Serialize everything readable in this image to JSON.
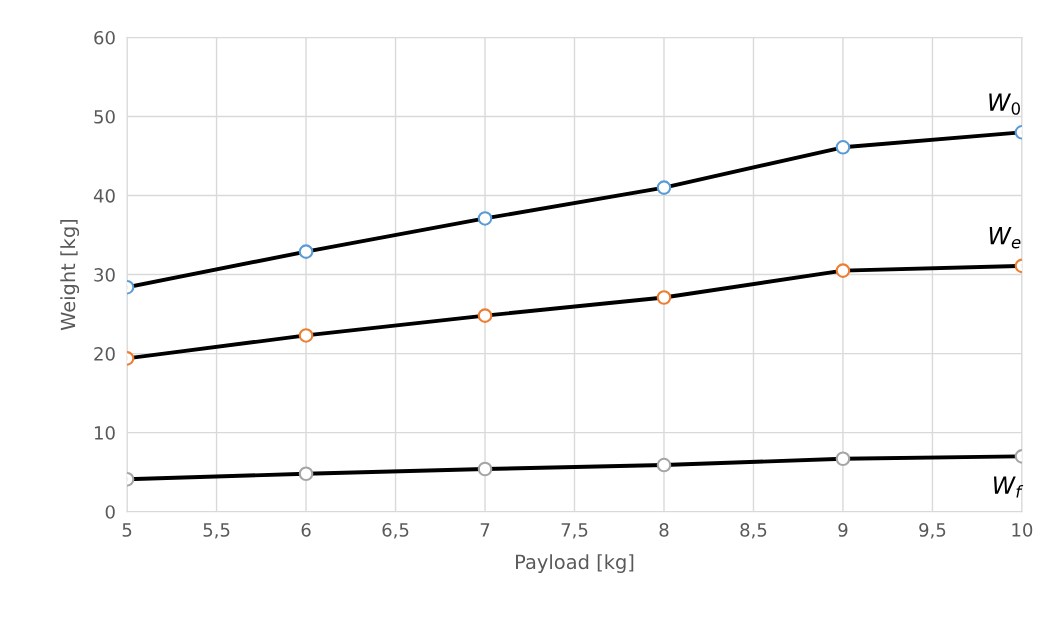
{
  "chart_data": {
    "type": "line",
    "xlabel": "Payload [kg]",
    "ylabel": "Weight [kg]",
    "x": [
      5,
      6,
      7,
      8,
      9,
      10
    ],
    "series": [
      {
        "name": "W$_{0}$",
        "color": "#5b9bd5",
        "values": [
          28.4,
          32.9,
          37.1,
          41.0,
          46.1,
          48.0
        ]
      },
      {
        "name": "W$_{e}$",
        "color": "#ed7d31",
        "values": [
          19.4,
          22.3,
          24.8,
          27.1,
          30.5,
          31.1
        ]
      },
      {
        "name": "W$_{f}$",
        "color": "#a5a5a5",
        "values": [
          4.1,
          4.8,
          5.4,
          5.9,
          6.7,
          7.0
        ]
      }
    ],
    "xlim": [
      5,
      10
    ],
    "ylim": [
      0,
      60
    ],
    "xticks": [
      5,
      {
        "value": 5.5,
        "label": "5,5"
      },
      6,
      {
        "value": 6.5,
        "label": "6,5"
      },
      7,
      {
        "value": 7.5,
        "label": "7,5"
      },
      8,
      {
        "value": 8.5,
        "label": "8,5"
      },
      9,
      {
        "value": 9.5,
        "label": "9,5"
      },
      10
    ],
    "yticks": [
      0,
      10,
      20,
      30,
      40,
      50,
      60
    ],
    "grid": true,
    "marker": "circle",
    "line_style": "solid",
    "legend": false
  }
}
